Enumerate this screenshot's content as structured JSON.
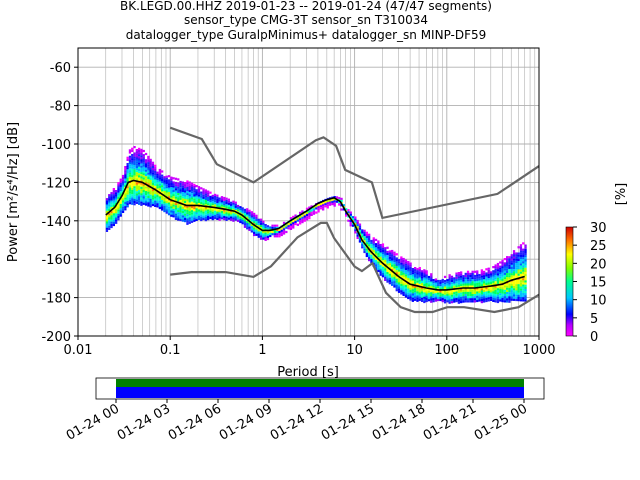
{
  "title_lines": [
    "BK.LEGD.00.HHZ   2019-01-23 -- 2019-01-24  (47/47 segments)",
    "sensor_type CMG-3T sensor_sn T310034",
    "datalogger_type GuralpMinimus+ datalogger_sn MINP-DF59"
  ],
  "colors": {
    "model_lines": "#666666",
    "mode_line": "#000000",
    "grid": "#b0b0b0",
    "coverage_data": "#0000ff",
    "coverage_gaps": "#008000"
  },
  "chart_data": [
    {
      "type": "heatmap",
      "xscale": "log",
      "xlim": [
        0.01,
        1000
      ],
      "ylim": [
        -200,
        -50
      ],
      "xlabel": "Period [s]",
      "ylabel": "Power [m²/s⁴/Hz] [dB]",
      "x_ticks": [
        "0.01",
        "0.1",
        "1",
        "10",
        "100",
        "1000"
      ],
      "y_ticks": [
        "-200",
        "-180",
        "-160",
        "-140",
        "-120",
        "-100",
        "-80",
        "-60"
      ],
      "grid": true,
      "colorbar": {
        "label": "[%]",
        "range": [
          0,
          30
        ],
        "ticks": [
          "0",
          "5",
          "10",
          "15",
          "20",
          "25",
          "30"
        ]
      },
      "noise_models": [
        {
          "label": "",
          "x": [
            0.1,
            0.22,
            0.32,
            0.8,
            3.8,
            4.6,
            6.3,
            7.9,
            15.4,
            20,
            354.8,
            1000
          ],
          "y": [
            -91.5,
            -97.4,
            -110.5,
            -120,
            -98,
            -96.5,
            -101,
            -113.5,
            -120,
            -138.5,
            -126,
            -111.5
          ]
        },
        {
          "label": "",
          "x": [
            0.1,
            0.17,
            0.4,
            0.8,
            1.24,
            2.4,
            4.3,
            5,
            6,
            10,
            12,
            15.6,
            21.9,
            31.6,
            45,
            70,
            101,
            154,
            328,
            600,
            1000
          ],
          "y": [
            -168,
            -166.7,
            -166.7,
            -169.2,
            -163.7,
            -148.6,
            -141.1,
            -141.1,
            -149,
            -163.8,
            -166.2,
            -162.1,
            -177.5,
            -185,
            -187.5,
            -187.5,
            -185,
            -185,
            -187.5,
            -185,
            -178.5
          ]
        }
      ],
      "mode": {
        "label": "",
        "x": [
          0.02,
          0.025,
          0.03,
          0.035,
          0.04,
          0.05,
          0.07,
          0.1,
          0.15,
          0.2,
          0.3,
          0.4,
          0.5,
          0.6,
          0.8,
          1.0,
          1.2,
          1.5,
          2,
          3,
          4,
          5,
          6,
          7,
          8,
          10,
          12,
          15,
          20,
          30,
          40,
          60,
          80,
          100,
          150,
          200,
          300,
          400,
          500,
          700
        ],
        "y": [
          -137,
          -133,
          -127,
          -120,
          -119,
          -120,
          -124,
          -129,
          -132,
          -132,
          -133,
          -134,
          -135,
          -137,
          -142,
          -145,
          -145,
          -144,
          -140,
          -135,
          -131,
          -129,
          -128,
          -130,
          -135,
          -142,
          -150,
          -156,
          -162,
          -169,
          -173,
          -175,
          -176,
          -176,
          -175,
          -175,
          -174,
          -173,
          -171,
          -169
        ]
      },
      "psd_band": {
        "x": [
          0.02,
          0.025,
          0.03,
          0.035,
          0.04,
          0.05,
          0.07,
          0.1,
          0.15,
          0.2,
          0.3,
          0.4,
          0.5,
          0.6,
          0.8,
          1.0,
          1.2,
          1.5,
          2,
          3,
          4,
          5,
          6,
          7,
          8,
          10,
          12,
          15,
          20,
          30,
          40,
          60,
          80,
          100,
          150,
          200,
          300,
          400,
          500,
          700
        ],
        "upper": [
          -126,
          -122,
          -116,
          -103,
          -101,
          -103,
          -112,
          -117,
          -119,
          -122,
          -126,
          -128,
          -130,
          -132,
          -136,
          -140,
          -142,
          -142,
          -138,
          -133,
          -130,
          -128,
          -127,
          -128,
          -133,
          -138,
          -144,
          -148,
          -152,
          -158,
          -162,
          -166,
          -170,
          -168,
          -166,
          -166,
          -164,
          -160,
          -156,
          -150
        ]
      }
    },
    {
      "type": "bar",
      "name": "coverage",
      "x_ticks": [
        "01-24 00",
        "01-24 03",
        "01-24 06",
        "01-24 09",
        "01-24 12",
        "01-24 15",
        "01-24 18",
        "01-24 21",
        "01-25 00"
      ]
    }
  ]
}
